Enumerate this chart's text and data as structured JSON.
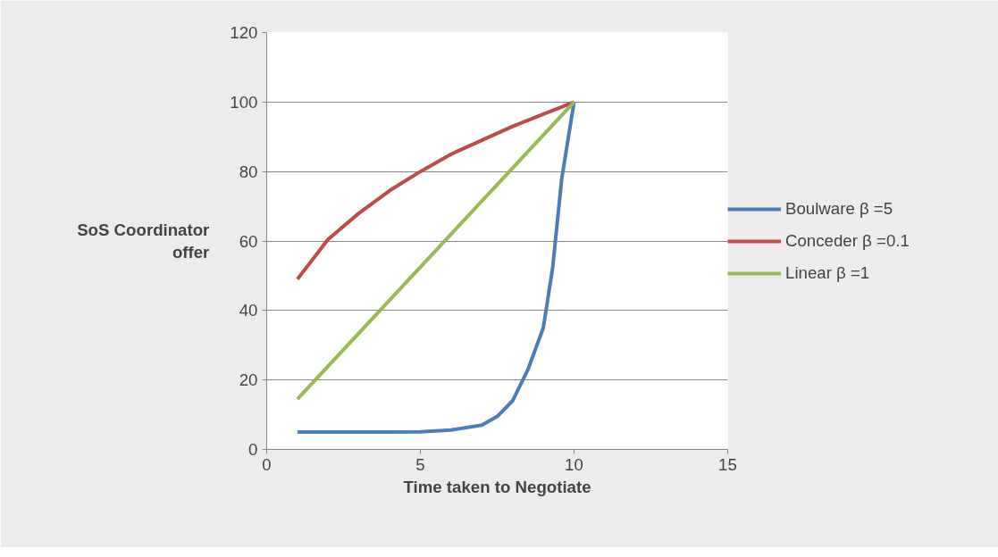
{
  "chart_data": {
    "type": "line",
    "xlabel": "Time taken to Negotiate",
    "ylabel": "SoS Coordinator offer",
    "xlim": [
      0,
      15
    ],
    "xticks": [
      0,
      5,
      10,
      15
    ],
    "ylim": [
      0,
      120
    ],
    "yticks": [
      0,
      20,
      40,
      60,
      80,
      100,
      120
    ],
    "grid": "y",
    "legend": "right",
    "marker": "none",
    "line_style": "solid",
    "series": [
      {
        "name": "Boulware β =5",
        "color": "#4a7ebb",
        "x": [
          1,
          2,
          3,
          4,
          5,
          6,
          7,
          7.5,
          8,
          8.5,
          9,
          9.3,
          9.6,
          10
        ],
        "values": [
          5,
          5,
          5,
          5,
          5.1,
          5.6,
          7,
          9.5,
          14,
          23,
          35,
          52,
          78,
          100
        ]
      },
      {
        "name": "Conceder β =0.1",
        "color": "#be4b48",
        "x": [
          1,
          2,
          3,
          4,
          5,
          6,
          7,
          8,
          9,
          10
        ],
        "values": [
          49,
          60.5,
          68,
          74.5,
          80,
          85,
          89,
          93,
          96.5,
          100
        ]
      },
      {
        "name": "Linear β =1",
        "color": "#98b954",
        "x": [
          1,
          10
        ],
        "values": [
          14.5,
          100
        ]
      }
    ]
  }
}
